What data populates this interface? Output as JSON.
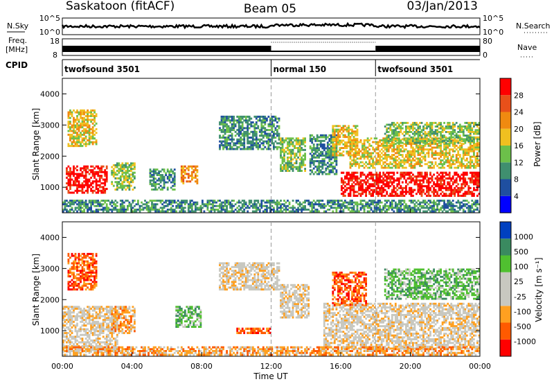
{
  "header": {
    "station": "Saskatoon (fitACF)",
    "beam": "Beam 05",
    "date": "03/Jan/2013"
  },
  "noise_panel": {
    "left_label": "N.Sky",
    "right_label": "N.Search",
    "ticks_top": "10^5",
    "ticks_bottom": "10^0"
  },
  "freq_panel": {
    "left_label_1": "Freq.",
    "left_label_2": "[MHz]",
    "left_tick_top": "18",
    "left_tick_bottom": "8",
    "right_label": "Nave",
    "right_tick_top": "80",
    "right_tick_bottom": "0"
  },
  "cpid_panel": {
    "label": "CPID",
    "segments": [
      {
        "start_hour": 0,
        "name": "twofsound 3501"
      },
      {
        "start_hour": 12,
        "name": "normal 150"
      },
      {
        "start_hour": 18,
        "name": "twofsound 3501"
      }
    ]
  },
  "x_axis": {
    "label": "Time UT",
    "ticks": [
      "00:00",
      "04:00",
      "08:00",
      "12:00",
      "16:00",
      "20:00",
      "00:00"
    ]
  },
  "colors": {
    "power_scale": [
      "#0000ff",
      "#1f4fa0",
      "#3f8f6f",
      "#6cc04a",
      "#f0c020",
      "#f08a10",
      "#e8501a",
      "#ff0000"
    ],
    "velocity_scale": [
      "#ff0000",
      "#ff5a00",
      "#ffa020",
      "#c8c8c0",
      "#c8c8c0",
      "#50c030",
      "#3a8a60",
      "#0040c0"
    ]
  },
  "chart_data": [
    {
      "type": "heatmap",
      "name": "power",
      "ylabel": "Slant Range [km]",
      "colorbar_label": "Power [dB]",
      "colorbar_ticks": [
        "4",
        "8",
        "12",
        "16",
        "20",
        "24",
        "28"
      ],
      "xlim": [
        0,
        24
      ],
      "ylim": [
        180,
        4500
      ],
      "yticks": [
        "1000",
        "2000",
        "3000",
        "4000"
      ],
      "regions": [
        {
          "x": [
            0.2,
            2.6
          ],
          "y": [
            800,
            1700
          ],
          "level": 7
        },
        {
          "x": [
            0.3,
            2.0
          ],
          "y": [
            2300,
            3500
          ],
          "level": 4
        },
        {
          "x": [
            2.8,
            4.2
          ],
          "y": [
            900,
            1800
          ],
          "level": 3
        },
        {
          "x": [
            5.0,
            6.5
          ],
          "y": [
            900,
            1600
          ],
          "level": 2
        },
        {
          "x": [
            6.8,
            7.8
          ],
          "y": [
            1100,
            1700
          ],
          "level": 5
        },
        {
          "x": [
            9.0,
            12.5
          ],
          "y": [
            2200,
            3300
          ],
          "level": 2
        },
        {
          "x": [
            12.5,
            14.0
          ],
          "y": [
            1500,
            2600
          ],
          "level": 3
        },
        {
          "x": [
            14.2,
            15.8
          ],
          "y": [
            1400,
            2700
          ],
          "level": 2
        },
        {
          "x": [
            15.5,
            17.0
          ],
          "y": [
            2000,
            3000
          ],
          "level": 4
        },
        {
          "x": [
            16.0,
            24.0
          ],
          "y": [
            700,
            1500
          ],
          "level": 7
        },
        {
          "x": [
            16.5,
            24.0
          ],
          "y": [
            1600,
            2600
          ],
          "level": 4
        },
        {
          "x": [
            18.5,
            24.0
          ],
          "y": [
            2400,
            3100
          ],
          "level": 3
        },
        {
          "x": [
            0.0,
            24.0
          ],
          "y": [
            200,
            600
          ],
          "level": 2
        }
      ]
    },
    {
      "type": "heatmap",
      "name": "velocity",
      "ylabel": "Slant Range [km]",
      "colorbar_label": "Velocity [m s⁻¹]",
      "colorbar_ticks": [
        "1000",
        "500",
        "100",
        "25",
        "-25",
        "-100",
        "-500",
        "-1000"
      ],
      "xlim": [
        0,
        24
      ],
      "ylim": [
        180,
        4500
      ],
      "yticks": [
        "1000",
        "2000",
        "3000",
        "4000"
      ],
      "regions": [
        {
          "x": [
            0.0,
            3.2
          ],
          "y": [
            300,
            1800
          ],
          "level": 3
        },
        {
          "x": [
            0.3,
            2.0
          ],
          "y": [
            2300,
            3500
          ],
          "level": 1
        },
        {
          "x": [
            2.8,
            4.2
          ],
          "y": [
            900,
            1800
          ],
          "level": 2
        },
        {
          "x": [
            6.5,
            8.0
          ],
          "y": [
            1100,
            1800
          ],
          "level": 5
        },
        {
          "x": [
            9.0,
            12.5
          ],
          "y": [
            2300,
            3200
          ],
          "level": 3
        },
        {
          "x": [
            12.5,
            14.2
          ],
          "y": [
            1400,
            2500
          ],
          "level": 3
        },
        {
          "x": [
            15.0,
            24.0
          ],
          "y": [
            400,
            1900
          ],
          "level": 3
        },
        {
          "x": [
            15.5,
            17.5
          ],
          "y": [
            1800,
            2900
          ],
          "level": 1
        },
        {
          "x": [
            18.5,
            24.0
          ],
          "y": [
            2000,
            3000
          ],
          "level": 5
        },
        {
          "x": [
            10.0,
            12.0
          ],
          "y": [
            900,
            1100
          ],
          "level": 1
        },
        {
          "x": [
            0.0,
            24.0
          ],
          "y": [
            200,
            500
          ],
          "level": 2
        }
      ]
    }
  ]
}
